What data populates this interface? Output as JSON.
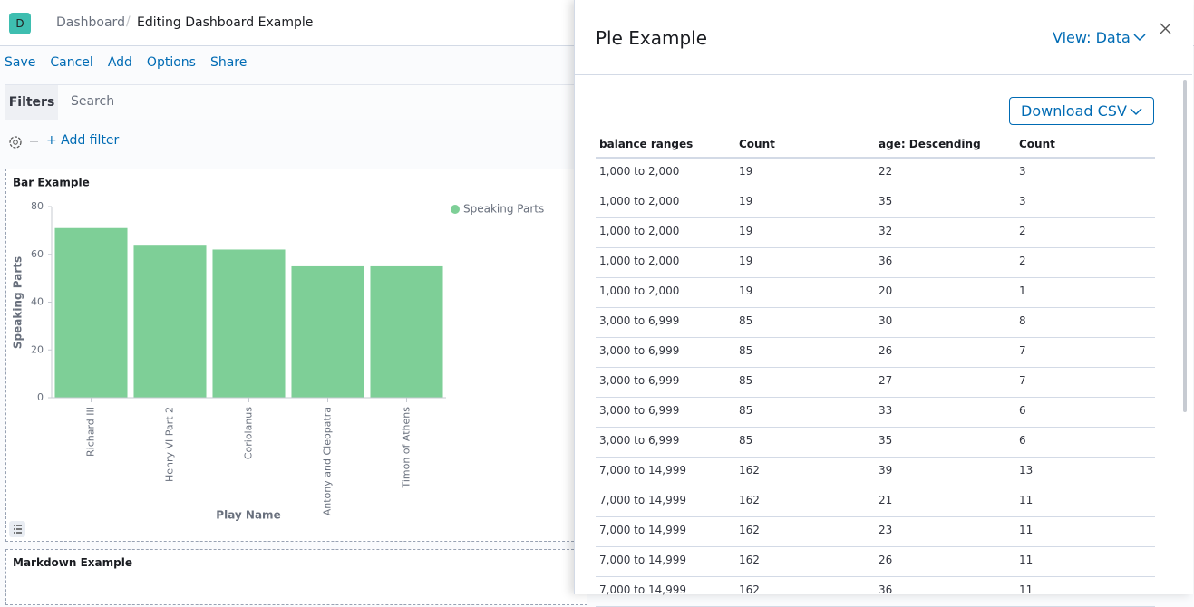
{
  "header": {
    "logo": "D",
    "breadcrumbs": [
      "Dashboard",
      "Editing Dashboard Example"
    ]
  },
  "menu": [
    "Save",
    "Cancel",
    "Add",
    "Options",
    "Share"
  ],
  "filter_bar": {
    "label": "Filters",
    "placeholder": "Search",
    "add_filter": "+ Add filter"
  },
  "chart_data": {
    "type": "bar",
    "title": "Bar Example",
    "x_label": "Play Name",
    "y_label": "Speaking Parts",
    "categories": [
      "Richard III",
      "Henry VI Part 2",
      "Coriolanus",
      "Antony and Cleopatra",
      "Timon of Athens"
    ],
    "series": [
      {
        "name": "Speaking Parts",
        "color": "#7ecf97",
        "values": [
          71,
          64,
          62,
          55,
          55
        ]
      }
    ],
    "ylim": [
      0,
      80
    ],
    "yticks": [
      0,
      20,
      40,
      60,
      80
    ],
    "legend": "top-right"
  },
  "markdown_panel": {
    "title": "Markdown Example"
  },
  "flyout": {
    "title": "Ple Example",
    "view_menu": "View: Data",
    "download_button": "Download CSV",
    "table": {
      "columns": [
        "balance ranges",
        "Count",
        "age: Descending",
        "Count"
      ],
      "rows": [
        [
          "1,000 to 2,000",
          19,
          22,
          3
        ],
        [
          "1,000 to 2,000",
          19,
          35,
          3
        ],
        [
          "1,000 to 2,000",
          19,
          32,
          2
        ],
        [
          "1,000 to 2,000",
          19,
          36,
          2
        ],
        [
          "1,000 to 2,000",
          19,
          20,
          1
        ],
        [
          "3,000 to 6,999",
          85,
          30,
          8
        ],
        [
          "3,000 to 6,999",
          85,
          26,
          7
        ],
        [
          "3,000 to 6,999",
          85,
          27,
          7
        ],
        [
          "3,000 to 6,999",
          85,
          33,
          6
        ],
        [
          "3,000 to 6,999",
          85,
          35,
          6
        ],
        [
          "7,000 to 14,999",
          162,
          39,
          13
        ],
        [
          "7,000 to 14,999",
          162,
          21,
          11
        ],
        [
          "7,000 to 14,999",
          162,
          23,
          11
        ],
        [
          "7,000 to 14,999",
          162,
          26,
          11
        ],
        [
          "7,000 to 14,999",
          162,
          36,
          11
        ]
      ]
    }
  }
}
